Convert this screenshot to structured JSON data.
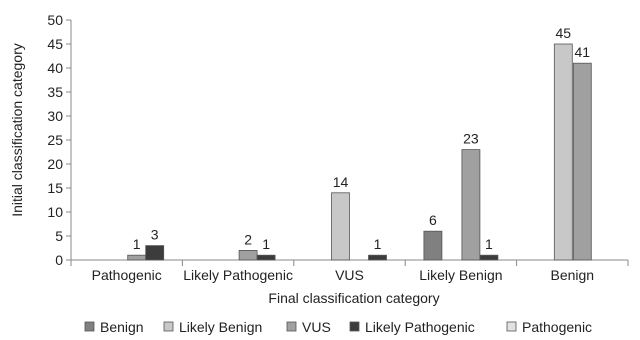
{
  "chart_data": {
    "type": "bar",
    "xlabel": "Final classification category",
    "ylabel": "Initial classification category",
    "ylim": [
      0,
      50
    ],
    "yticks": [
      0,
      5,
      10,
      15,
      20,
      25,
      30,
      35,
      40,
      45,
      50
    ],
    "grid": false,
    "legend_position": "bottom",
    "categories": [
      "Pathogenic",
      "Likely Pathogenic",
      "VUS",
      "Likely Benign",
      "Benign"
    ],
    "series": [
      {
        "name": "Benign",
        "color": "#808080",
        "values": [
          0,
          0,
          0,
          6,
          0
        ],
        "labels": [
          "",
          "",
          "",
          "6",
          ""
        ]
      },
      {
        "name": "Likely Benign",
        "color": "#c8c8c8",
        "values": [
          0,
          0,
          14,
          0,
          45
        ],
        "labels": [
          "",
          "",
          "14",
          "",
          "45"
        ]
      },
      {
        "name": "VUS",
        "color": "#a0a0a0",
        "values": [
          1,
          2,
          0,
          23,
          41
        ],
        "labels": [
          "1",
          "2",
          "",
          "23",
          "41"
        ]
      },
      {
        "name": "Likely Pathogenic",
        "color": "#3c3c3c",
        "values": [
          3,
          1,
          1,
          1,
          0
        ],
        "labels": [
          "3",
          "1",
          "1",
          "1",
          ""
        ]
      },
      {
        "name": "Pathogenic",
        "color": "#e2e2e2",
        "values": [
          0,
          0,
          0,
          0,
          0
        ],
        "labels": [
          "",
          "",
          "",
          "",
          ""
        ]
      }
    ]
  }
}
